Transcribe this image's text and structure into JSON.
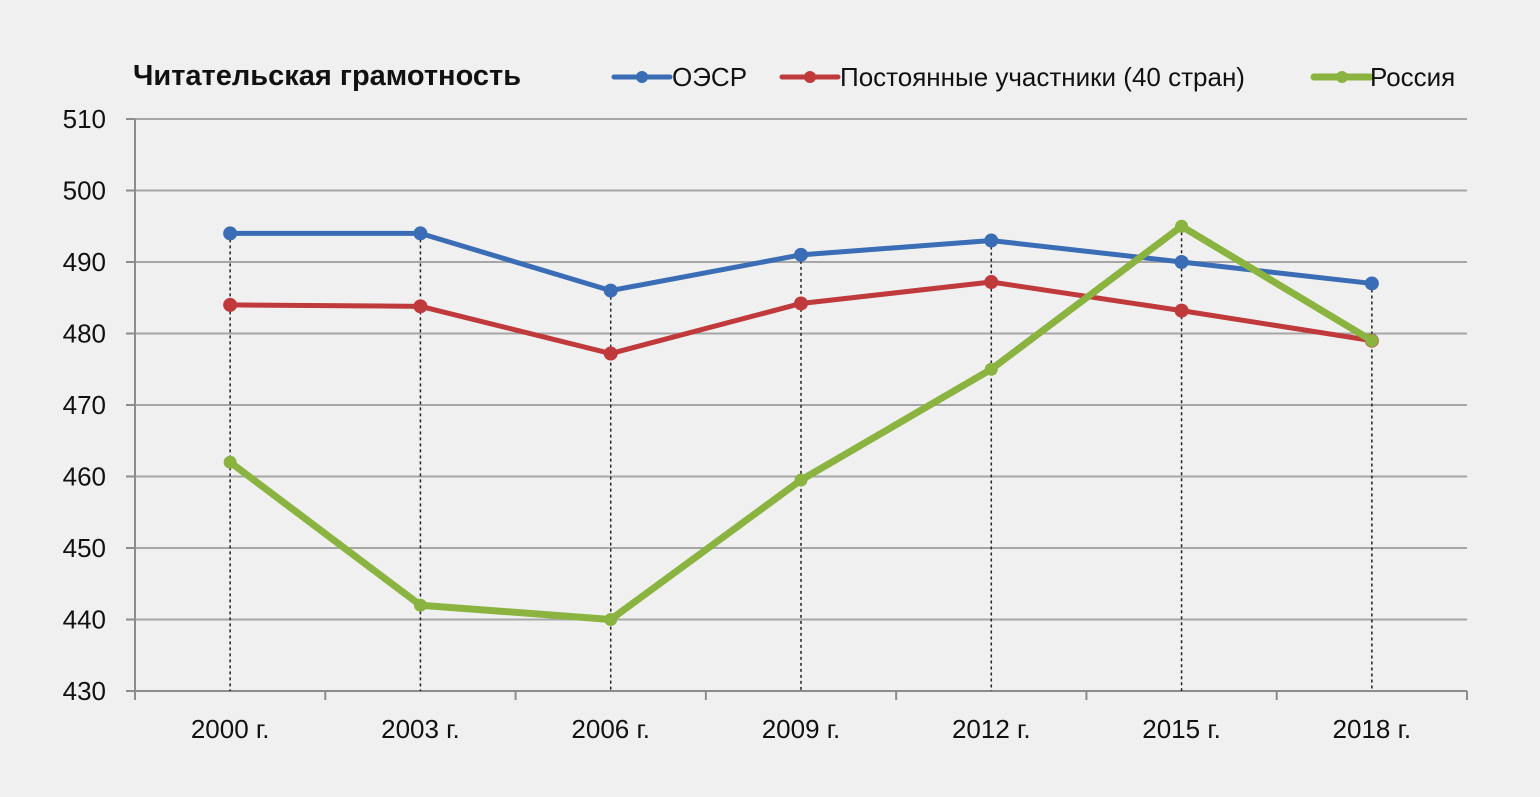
{
  "chart_data": {
    "type": "line",
    "title": "Читательская грамотность",
    "categories": [
      "2000 г.",
      "2003 г.",
      "2006 г.",
      "2009 г.",
      "2012 г.",
      "2015 г.",
      "2018 г."
    ],
    "ylim": [
      430,
      510
    ],
    "yticks": [
      "430",
      "440",
      "450",
      "460",
      "470",
      "480",
      "490",
      "500",
      "510"
    ],
    "grid": true,
    "legend_position": "top",
    "series": [
      {
        "name": "ОЭСР",
        "color": "#3a6db5",
        "values": [
          494,
          494,
          486,
          491,
          493,
          490,
          487
        ]
      },
      {
        "name": "Постоянные участники (40 стран)",
        "color": "#c0393b",
        "values": [
          484,
          483.8,
          477.2,
          484.2,
          487.2,
          483.2,
          479
        ]
      },
      {
        "name": "Россия",
        "color": "#8ab33f",
        "values": [
          462,
          442,
          440,
          459.5,
          475,
          495,
          479
        ]
      }
    ]
  }
}
